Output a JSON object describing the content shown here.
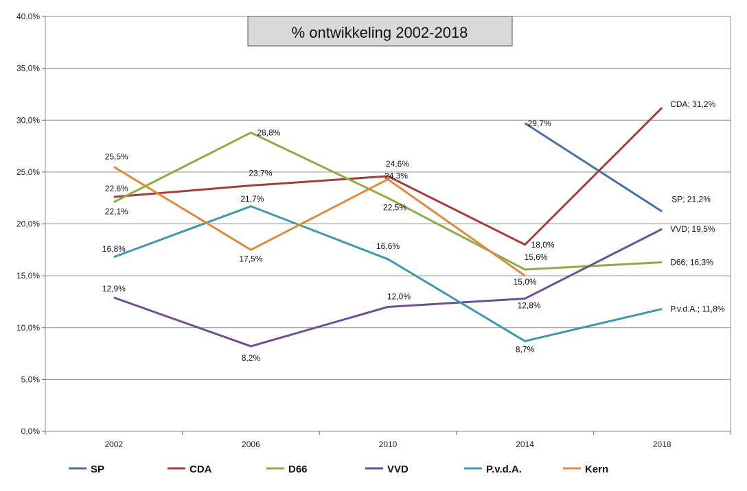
{
  "chart_data": {
    "type": "line",
    "title": "% ontwikkeling 2002-2018",
    "xlabel": "",
    "ylabel": "",
    "categories": [
      "2002",
      "2006",
      "2010",
      "2014",
      "2018"
    ],
    "ylim": [
      0,
      40
    ],
    "yticks": [
      "0,0%",
      "5,0%",
      "10,0%",
      "15,0%",
      "20,0%",
      "25,0%",
      "30,0%",
      "35,0%",
      "40,0%"
    ],
    "grid": true,
    "legend_position": "bottom",
    "series": [
      {
        "name": "SP",
        "color": "#4a6fa0",
        "values": [
          null,
          null,
          null,
          29.7,
          21.2
        ],
        "labels": [
          "",
          "",
          "",
          "29,7%",
          "SP; 21,2%"
        ]
      },
      {
        "name": "CDA",
        "color": "#a33e3b",
        "values": [
          22.6,
          23.7,
          24.6,
          18.0,
          31.2
        ],
        "labels": [
          "22,6%",
          "23,7%",
          "24,6%",
          "18,0%",
          "CDA; 31,2%"
        ]
      },
      {
        "name": "D66",
        "color": "#8cac48",
        "values": [
          22.1,
          28.8,
          22.5,
          15.6,
          16.3
        ],
        "labels": [
          "22,1%",
          "28,8%",
          "22,5%",
          "15,6%",
          "D66; 16,3%"
        ]
      },
      {
        "name": "VVD",
        "color": "#6f4f8f",
        "values": [
          12.9,
          8.2,
          12.0,
          12.8,
          19.5
        ],
        "labels": [
          "12,9%",
          "8,2%",
          "12,0%",
          "12,8%",
          "VVD; 19,5%"
        ]
      },
      {
        "name": "P.v.d.A.",
        "color": "#3f98ab",
        "values": [
          16.8,
          21.7,
          16.6,
          8.7,
          11.8
        ],
        "labels": [
          "16,8%",
          "21,7%",
          "16,6%",
          "8,7%",
          "P.v.d.A.; 11,8%"
        ]
      },
      {
        "name": "Kern",
        "color": "#df8a3c",
        "values": [
          25.5,
          17.5,
          24.3,
          15.0,
          null
        ],
        "labels": [
          "25,5%",
          "17,5%",
          "24,3%",
          "15,0%",
          ""
        ]
      }
    ]
  }
}
